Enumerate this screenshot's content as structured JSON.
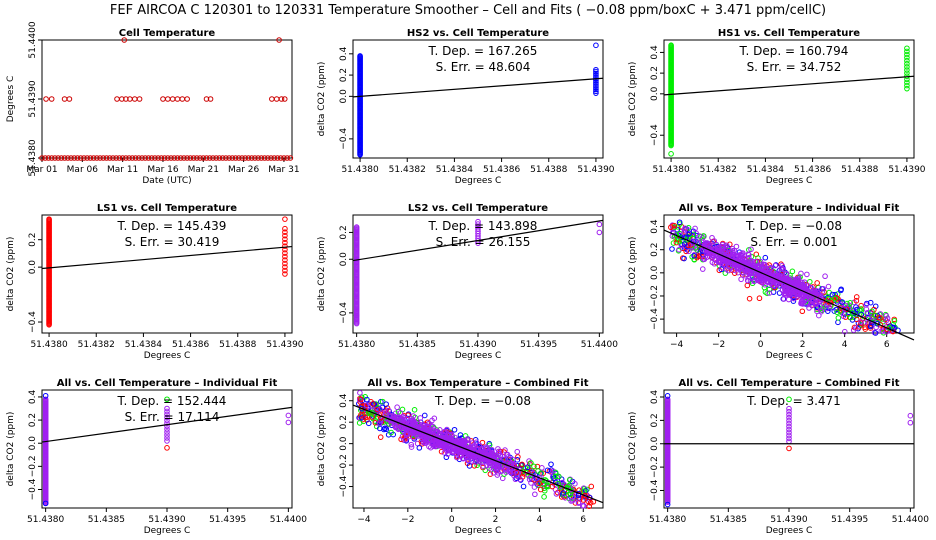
{
  "figure": {
    "suptitle": "FEF   AIRCOA C   120301 to 120331   Temperature Smoother – Cell and Fits ( −0.08  ppm/boxC +  3.471  ppm/cellC)"
  },
  "colors": {
    "HS2": "#0000ff",
    "HS1": "#00ee00",
    "LS1": "#ff0000",
    "LS2": "#a020f0",
    "fit_line": "#000000",
    "cell_temp": "#cc0000"
  },
  "chart_data": [
    {
      "type": "scatter",
      "title": "Cell Temperature",
      "xlabel": "Date (UTC)",
      "ylabel": "Degrees C",
      "xlim": [
        0,
        31
      ],
      "ylim": [
        51.438,
        51.44
      ],
      "xticks": [
        {
          "v": 0,
          "label": "Mar 01"
        },
        {
          "v": 5,
          "label": "Mar 06"
        },
        {
          "v": 10,
          "label": "Mar 11"
        },
        {
          "v": 15,
          "label": "Mar 16"
        },
        {
          "v": 20,
          "label": "Mar 21"
        },
        {
          "v": 25,
          "label": "Mar 26"
        },
        {
          "v": 30,
          "label": "Mar 31"
        }
      ],
      "yticks": [
        {
          "v": 51.438,
          "label": "51.4380"
        },
        {
          "v": 51.439,
          "label": "51.4390"
        },
        {
          "v": 51.44,
          "label": "51.4400"
        }
      ],
      "series": [
        {
          "color": "#cc0000",
          "x": [
            0.5,
            1.2,
            2.8,
            3.4,
            9.3,
            9.9,
            10.4,
            10.9,
            11.5,
            12.1,
            15.0,
            15.6,
            16.2,
            16.8,
            17.4,
            18.0,
            20.4,
            20.9,
            28.5,
            29.1,
            29.7,
            30.1
          ],
          "y": [
            51.439,
            51.439,
            51.439,
            51.439,
            51.439,
            51.439,
            51.439,
            51.439,
            51.439,
            51.439,
            51.439,
            51.439,
            51.439,
            51.439,
            51.439,
            51.439,
            51.439,
            51.439,
            51.439,
            51.439,
            51.439,
            51.439
          ]
        },
        {
          "color": "#cc0000",
          "x": [
            10.2,
            29.4
          ],
          "y": [
            51.44,
            51.44
          ]
        }
      ],
      "baseline": {
        "y": 51.438,
        "from": 0,
        "to": 31,
        "step": 0.4,
        "color": "#cc0000"
      }
    },
    {
      "type": "scatter",
      "title": "HS2 vs. Cell Temperature",
      "xlabel": "Degrees C",
      "ylabel": "delta CO2 (ppm)",
      "xlim": [
        51.43797,
        51.43903
      ],
      "ylim": [
        -0.58,
        0.53
      ],
      "xticks": [
        {
          "v": 51.438,
          "label": "51.4380"
        },
        {
          "v": 51.4382,
          "label": "51.4382"
        },
        {
          "v": 51.4384,
          "label": "51.4384"
        },
        {
          "v": 51.4386,
          "label": "51.4386"
        },
        {
          "v": 51.4388,
          "label": "51.4388"
        },
        {
          "v": 51.439,
          "label": "51.4390"
        }
      ],
      "yticks": [
        {
          "v": -0.4,
          "label": "−0.4"
        },
        {
          "v": 0.0,
          "label": "0.0"
        },
        {
          "v": 0.2,
          "label": "0.2"
        },
        {
          "v": 0.4,
          "label": "0.4"
        }
      ],
      "annotations": [
        "T. Dep. =  167.265",
        "S. Err. =  48.604"
      ],
      "fit": {
        "x": [
          51.43797,
          51.43903
        ],
        "y": [
          -0.005,
          0.17
        ]
      },
      "series": [
        {
          "name": "HS2",
          "color": "#0000ff",
          "columns": [
            {
              "x": 51.438,
              "ymin": -0.55,
              "ymax": 0.38,
              "n": 110
            },
            {
              "x": 51.439,
              "ymin": 0.03,
              "ymax": 0.25,
              "n": 14
            }
          ],
          "extra_x": [
            51.439
          ],
          "extra_y": [
            0.48
          ]
        }
      ]
    },
    {
      "type": "scatter",
      "title": "HS1 vs. Cell Temperature",
      "xlabel": "Degrees C",
      "ylabel": "delta CO2 (ppm)",
      "xlim": [
        51.43797,
        51.43903
      ],
      "ylim": [
        -0.62,
        0.52
      ],
      "xticks": [
        {
          "v": 51.438,
          "label": "51.4380"
        },
        {
          "v": 51.4382,
          "label": "51.4382"
        },
        {
          "v": 51.4384,
          "label": "51.4384"
        },
        {
          "v": 51.4386,
          "label": "51.4386"
        },
        {
          "v": 51.4388,
          "label": "51.4388"
        },
        {
          "v": 51.439,
          "label": "51.4390"
        }
      ],
      "yticks": [
        {
          "v": -0.4,
          "label": "−0.4"
        },
        {
          "v": 0.0,
          "label": "0.0"
        },
        {
          "v": 0.2,
          "label": "0.2"
        },
        {
          "v": 0.4,
          "label": "0.4"
        }
      ],
      "annotations": [
        "T. Dep. =  160.794",
        "S. Err. =  34.752"
      ],
      "fit": {
        "x": [
          51.43797,
          51.43903
        ],
        "y": [
          -0.01,
          0.17
        ]
      },
      "series": [
        {
          "name": "HS1",
          "color": "#00ee00",
          "columns": [
            {
              "x": 51.438,
              "ymin": -0.5,
              "ymax": 0.47,
              "n": 110
            },
            {
              "x": 51.439,
              "ymin": 0.05,
              "ymax": 0.44,
              "n": 14
            }
          ],
          "extra_x": [
            51.438
          ],
          "extra_y": [
            -0.58
          ]
        }
      ]
    },
    {
      "type": "scatter",
      "title": "LS1 vs. Cell Temperature",
      "xlabel": "Degrees C",
      "ylabel": "delta CO2 (ppm)",
      "xlim": [
        51.43797,
        51.43903
      ],
      "ylim": [
        -0.48,
        0.38
      ],
      "xticks": [
        {
          "v": 51.438,
          "label": "51.4380"
        },
        {
          "v": 51.4382,
          "label": "51.4382"
        },
        {
          "v": 51.4384,
          "label": "51.4384"
        },
        {
          "v": 51.4386,
          "label": "51.4386"
        },
        {
          "v": 51.4388,
          "label": "51.4388"
        },
        {
          "v": 51.439,
          "label": "51.4390"
        }
      ],
      "yticks": [
        {
          "v": -0.4,
          "label": "−0.4"
        },
        {
          "v": 0.0,
          "label": "0.0"
        },
        {
          "v": 0.2,
          "label": "0.2"
        }
      ],
      "annotations": [
        "T. Dep. =  145.439",
        "S. Err. =  30.419"
      ],
      "fit": {
        "x": [
          51.43797,
          51.43903
        ],
        "y": [
          -0.01,
          0.15
        ]
      },
      "series": [
        {
          "name": "LS1",
          "color": "#ff0000",
          "columns": [
            {
              "x": 51.438,
              "ymin": -0.42,
              "ymax": 0.35,
              "n": 110
            },
            {
              "x": 51.439,
              "ymin": -0.05,
              "ymax": 0.28,
              "n": 14
            }
          ],
          "extra_x": [
            51.439
          ],
          "extra_y": [
            0.35
          ]
        }
      ]
    },
    {
      "type": "scatter",
      "title": "LS2 vs. Cell Temperature",
      "xlabel": "Degrees C",
      "ylabel": "delta CO2 (ppm)",
      "xlim": [
        51.43797,
        51.44003
      ],
      "ylim": [
        -0.55,
        0.33
      ],
      "xticks": [
        {
          "v": 51.438,
          "label": "51.4380"
        },
        {
          "v": 51.4385,
          "label": "51.4385"
        },
        {
          "v": 51.439,
          "label": "51.4390"
        },
        {
          "v": 51.4395,
          "label": "51.4395"
        },
        {
          "v": 51.44,
          "label": "51.4400"
        }
      ],
      "yticks": [
        {
          "v": -0.4,
          "label": "−0.4"
        },
        {
          "v": 0.0,
          "label": "0.0"
        },
        {
          "v": 0.2,
          "label": "0.2"
        }
      ],
      "annotations": [
        "T. Dep. =  143.898",
        "S. Err. =  26.155"
      ],
      "fit": {
        "x": [
          51.43797,
          51.44003
        ],
        "y": [
          -0.01,
          0.29
        ]
      },
      "series": [
        {
          "name": "LS2",
          "color": "#a020f0",
          "columns": [
            {
              "x": 51.438,
              "ymin": -0.48,
              "ymax": 0.24,
              "n": 90
            },
            {
              "x": 51.439,
              "ymin": 0.12,
              "ymax": 0.28,
              "n": 10
            }
          ],
          "extra_x": [
            51.44,
            51.44,
            51.438
          ],
          "extra_y": [
            0.2,
            0.26,
            -0.42
          ]
        }
      ]
    },
    {
      "type": "scatter",
      "title": "All vs. Box Temperature – Individual Fit",
      "xlabel": "Degrees C",
      "ylabel": "delta CO2 (ppm)",
      "xlim": [
        -4.6,
        7.3
      ],
      "ylim": [
        -0.52,
        0.5
      ],
      "xticks": [
        {
          "v": -4,
          "label": "−4"
        },
        {
          "v": -2,
          "label": "−2"
        },
        {
          "v": 0,
          "label": "0"
        },
        {
          "v": 2,
          "label": "2"
        },
        {
          "v": 4,
          "label": "4"
        },
        {
          "v": 6,
          "label": "6"
        }
      ],
      "yticks": [
        {
          "v": -0.4,
          "label": "−0.4"
        },
        {
          "v": -0.2,
          "label": "−0.2"
        },
        {
          "v": 0.0,
          "label": "0.0"
        },
        {
          "v": 0.2,
          "label": "0.2"
        },
        {
          "v": 0.4,
          "label": "0.4"
        }
      ],
      "annotations": [
        "T. Dep. =  −0.08",
        "S. Err. =  0.001"
      ],
      "fit": {
        "x": [
          -4.6,
          7.3
        ],
        "y": [
          0.37,
          -0.58
        ]
      },
      "cloud": {
        "slope": -0.08,
        "intercept": 0.0,
        "xmin": -4.2,
        "xmax": 6.8,
        "spread": 0.12,
        "n": 700,
        "colors": [
          "#0000ff",
          "#00ee00",
          "#ff0000",
          "#a020f0"
        ]
      }
    },
    {
      "type": "scatter",
      "title": "All vs. Cell Temperature – Individual Fit",
      "xlabel": "Degrees C",
      "ylabel": "delta CO2 (ppm)",
      "xlim": [
        51.43797,
        51.44003
      ],
      "ylim": [
        -0.56,
        0.46
      ],
      "xticks": [
        {
          "v": 51.438,
          "label": "51.4380"
        },
        {
          "v": 51.4385,
          "label": "51.4385"
        },
        {
          "v": 51.439,
          "label": "51.4390"
        },
        {
          "v": 51.4395,
          "label": "51.4395"
        },
        {
          "v": 51.44,
          "label": "51.4400"
        }
      ],
      "yticks": [
        {
          "v": -0.4,
          "label": "−0.4"
        },
        {
          "v": -0.2,
          "label": "−0.2"
        },
        {
          "v": 0.0,
          "label": "0.0"
        },
        {
          "v": 0.2,
          "label": "0.2"
        },
        {
          "v": 0.4,
          "label": "0.4"
        }
      ],
      "annotations": [
        "T. Dep. =  152.444",
        "S. Err. =  17.114"
      ],
      "fit": {
        "x": [
          51.43797,
          51.44003
        ],
        "y": [
          0.01,
          0.31
        ]
      },
      "series": [
        {
          "name": "all",
          "color": "#a020f0",
          "columns": [
            {
              "x": 51.438,
              "ymin": -0.52,
              "ymax": 0.38,
              "n": 120
            },
            {
              "x": 51.439,
              "ymin": 0.02,
              "ymax": 0.3,
              "n": 12
            }
          ],
          "extra_x": [
            51.44,
            51.44,
            51.439,
            51.438,
            51.438,
            51.439
          ],
          "extra_y": [
            0.18,
            0.24,
            -0.04,
            0.41,
            -0.52,
            0.38
          ],
          "extra_colors": [
            "#a020f0",
            "#a020f0",
            "#ff0000",
            "#0000ff",
            "#0000ff",
            "#00ee00"
          ]
        }
      ]
    },
    {
      "type": "scatter",
      "title": "All vs. Box Temperature – Combined Fit",
      "xlabel": "Degrees C",
      "ylabel": "delta CO2 (ppm)",
      "xlim": [
        -4.5,
        6.9
      ],
      "ylim": [
        -0.6,
        0.5
      ],
      "xticks": [
        {
          "v": -4,
          "label": "−4"
        },
        {
          "v": -2,
          "label": "−2"
        },
        {
          "v": 0,
          "label": "0"
        },
        {
          "v": 2,
          "label": "2"
        },
        {
          "v": 4,
          "label": "4"
        },
        {
          "v": 6,
          "label": "6"
        }
      ],
      "yticks": [
        {
          "v": -0.4,
          "label": "−0.4"
        },
        {
          "v": -0.2,
          "label": "−0.2"
        },
        {
          "v": 0.0,
          "label": "0.0"
        },
        {
          "v": 0.2,
          "label": "0.2"
        },
        {
          "v": 0.4,
          "label": "0.4"
        }
      ],
      "annotations": [
        "T. Dep. =  −0.08"
      ],
      "fit": {
        "x": [
          -4.5,
          6.9
        ],
        "y": [
          0.36,
          -0.55
        ]
      },
      "cloud": {
        "slope": -0.08,
        "intercept": 0.0,
        "xmin": -4.2,
        "xmax": 6.6,
        "spread": 0.12,
        "n": 700,
        "colors": [
          "#0000ff",
          "#00ee00",
          "#ff0000",
          "#a020f0"
        ]
      }
    },
    {
      "type": "scatter",
      "title": "All vs. Cell Temperature – Combined Fit",
      "xlabel": "Degrees C",
      "ylabel": "delta CO2 (ppm)",
      "xlim": [
        51.43797,
        51.44003
      ],
      "ylim": [
        -0.55,
        0.46
      ],
      "xticks": [
        {
          "v": 51.438,
          "label": "51.4380"
        },
        {
          "v": 51.4385,
          "label": "51.4385"
        },
        {
          "v": 51.439,
          "label": "51.4390"
        },
        {
          "v": 51.4395,
          "label": "51.4395"
        },
        {
          "v": 51.44,
          "label": "51.4400"
        }
      ],
      "yticks": [
        {
          "v": -0.4,
          "label": "−0.4"
        },
        {
          "v": -0.2,
          "label": "−0.2"
        },
        {
          "v": 0.0,
          "label": "0.0"
        },
        {
          "v": 0.2,
          "label": "0.2"
        },
        {
          "v": 0.4,
          "label": "0.4"
        }
      ],
      "annotations": [
        "T. Dep. =  3.471"
      ],
      "fit": {
        "x": [
          51.43797,
          51.44003
        ],
        "y": [
          0.0,
          0.0
        ]
      },
      "series": [
        {
          "name": "all",
          "color": "#a020f0",
          "columns": [
            {
              "x": 51.438,
              "ymin": -0.5,
              "ymax": 0.38,
              "n": 120
            },
            {
              "x": 51.439,
              "ymin": 0.02,
              "ymax": 0.3,
              "n": 12
            }
          ],
          "extra_x": [
            51.44,
            51.44,
            51.439,
            51.438,
            51.438,
            51.439
          ],
          "extra_y": [
            0.18,
            0.24,
            -0.04,
            0.41,
            -0.52,
            0.38
          ],
          "extra_colors": [
            "#a020f0",
            "#a020f0",
            "#ff0000",
            "#0000ff",
            "#0000ff",
            "#00ee00"
          ]
        }
      ]
    }
  ]
}
